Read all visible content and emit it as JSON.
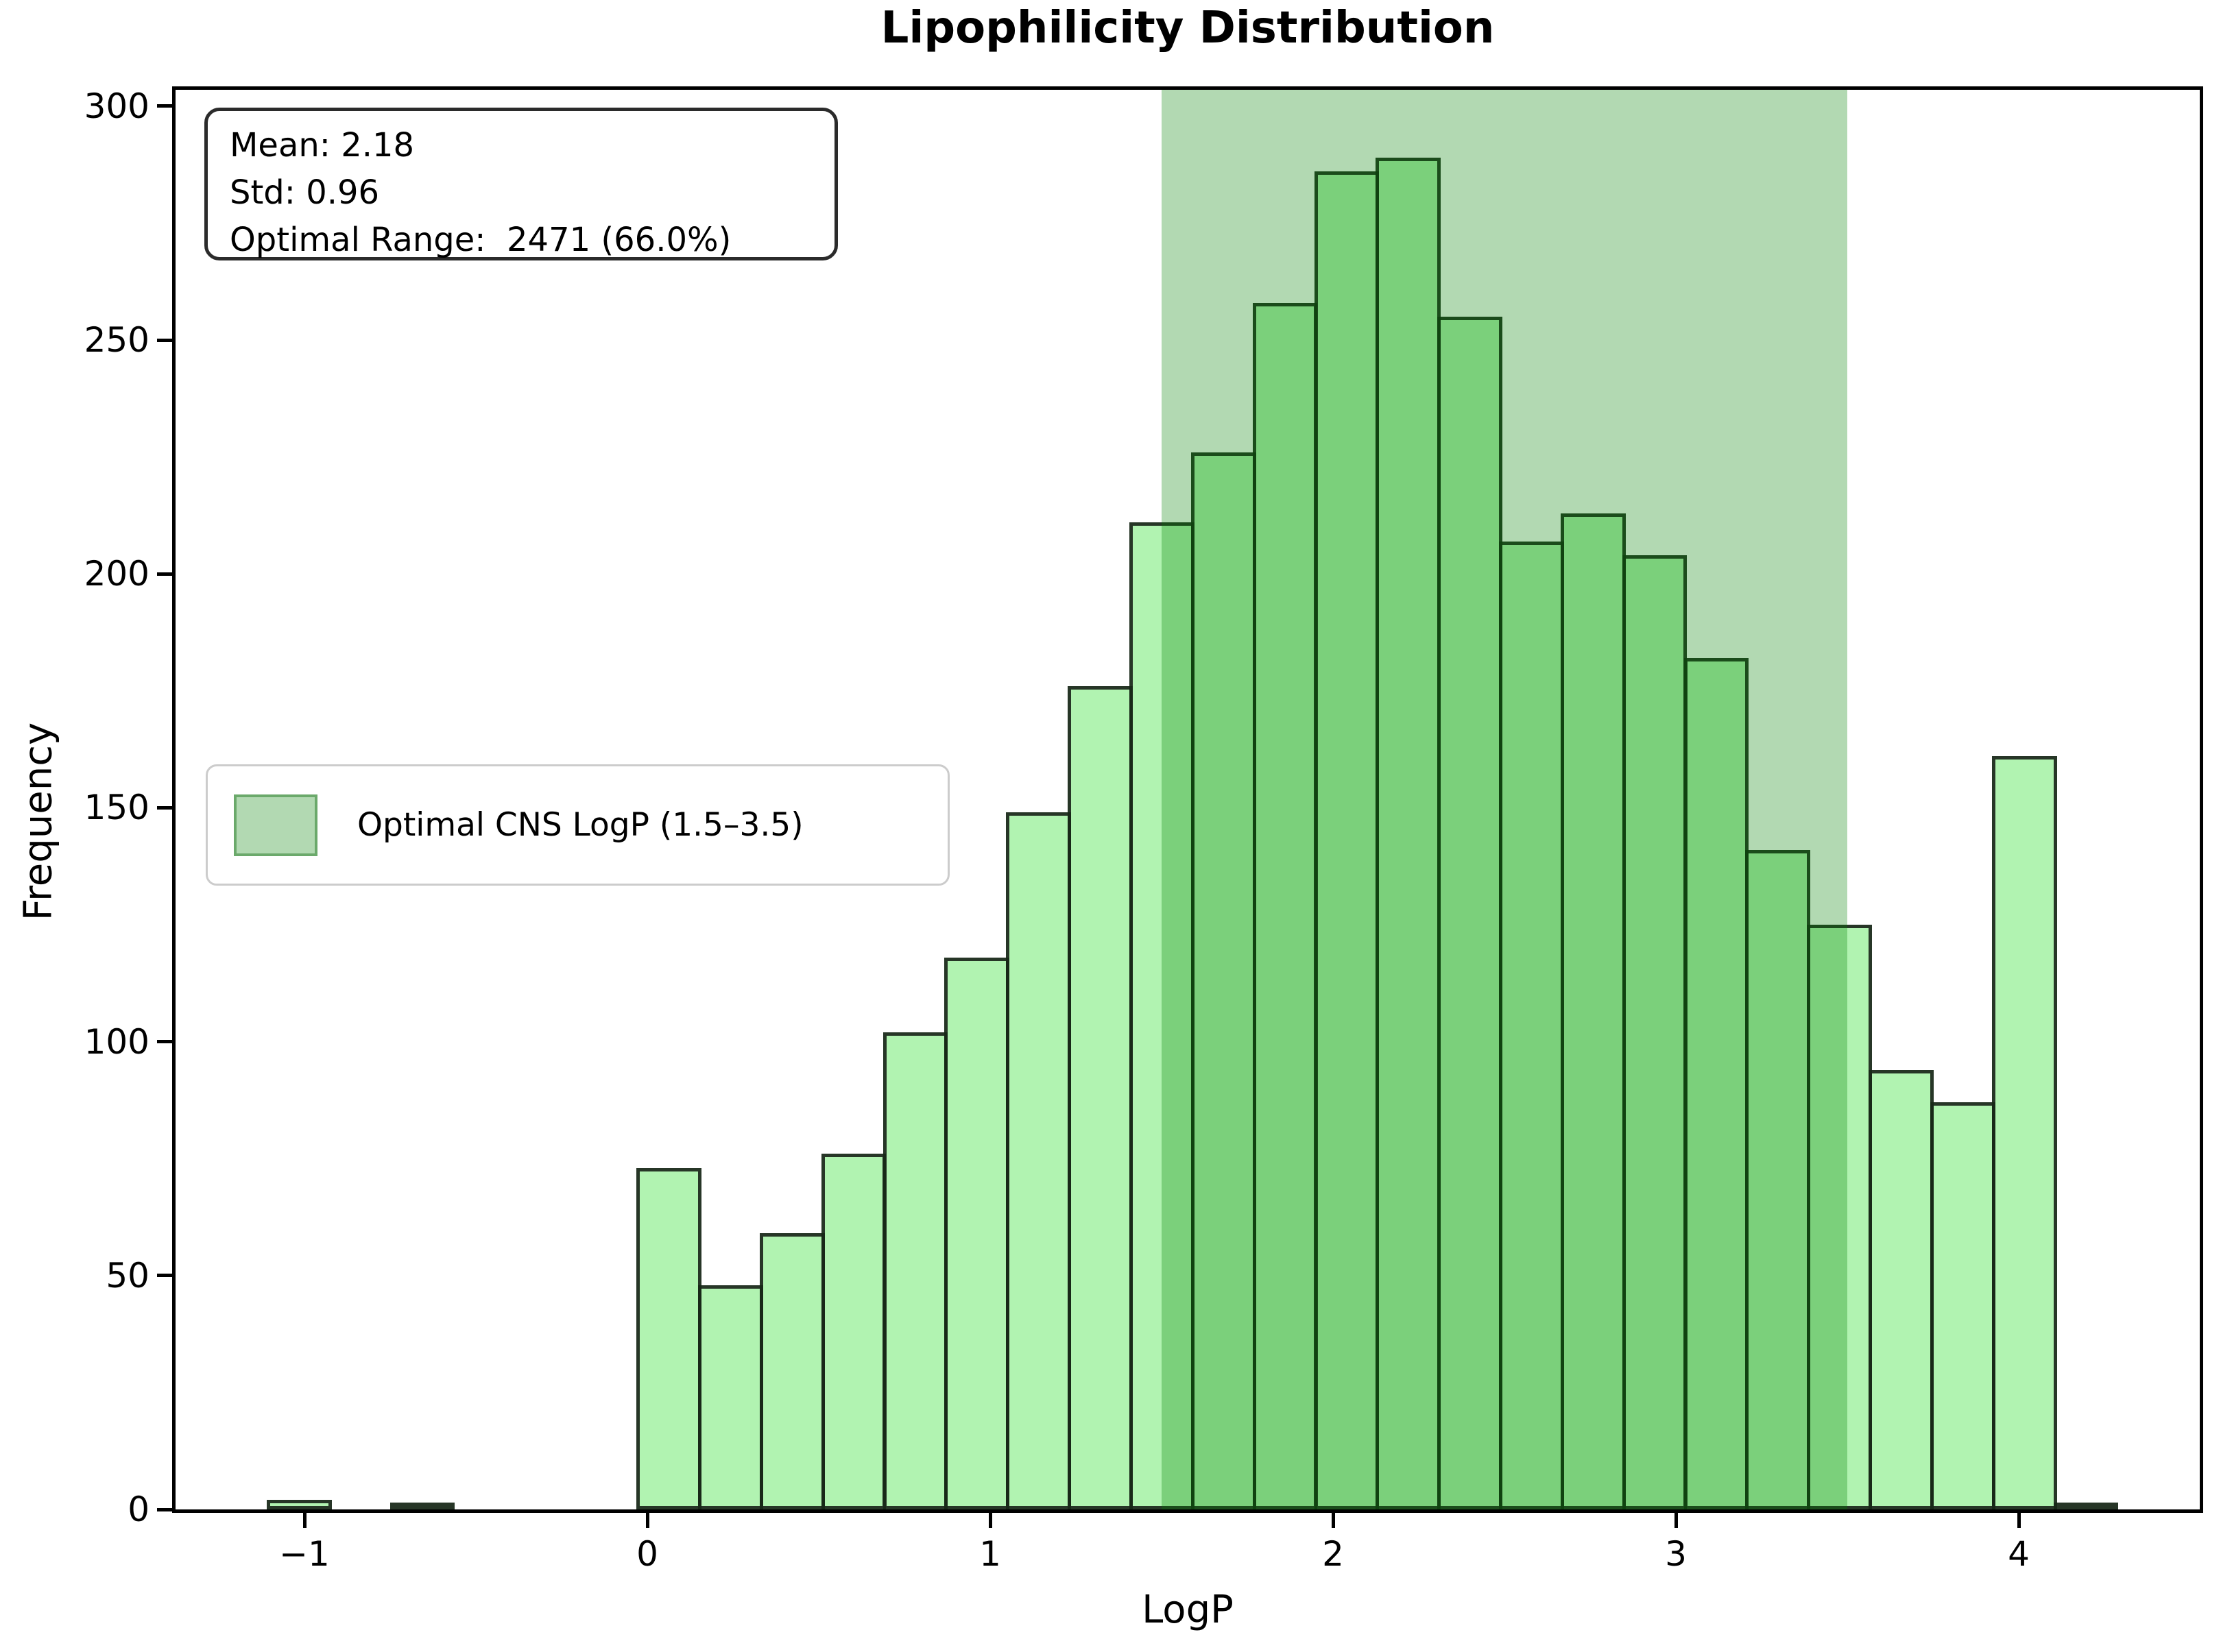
{
  "title": "Lipophilicity Distribution",
  "stats_box": {
    "mean_line": "Mean: 2.18",
    "std_line": "Std: 0.96",
    "optimal_line": "Optimal Range:  2471 (66.0%)"
  },
  "legend": {
    "label": "Optimal CNS LogP (1.5–3.5)"
  },
  "chart_data": {
    "type": "bar",
    "subtype": "histogram",
    "title": "Lipophilicity Distribution",
    "xlabel": "LogP",
    "ylabel": "Frequency",
    "bins": {
      "start": -1.11,
      "width": 0.1797,
      "count": 30
    },
    "counts": [
      2,
      0,
      1,
      0,
      0,
      0,
      73,
      48,
      59,
      76,
      102,
      118,
      149,
      176,
      211,
      226,
      258,
      286,
      289,
      255,
      207,
      213,
      204,
      182,
      141,
      125,
      94,
      87,
      161,
      1
    ],
    "total_count": 3744,
    "x_ticks": [
      -1,
      0,
      1,
      2,
      3,
      4
    ],
    "x_tick_labels": [
      "−1",
      "0",
      "1",
      "2",
      "3",
      "4"
    ],
    "y_ticks": [
      0,
      50,
      100,
      150,
      200,
      250,
      300
    ],
    "y_tick_labels": [
      "0",
      "50",
      "100",
      "150",
      "200",
      "250",
      "300"
    ],
    "xlim": [
      -1.376,
      4.528
    ],
    "ylim": [
      0,
      303.5
    ],
    "band": {
      "from": 1.5,
      "to": 3.5,
      "label": "Optimal CNS LogP (1.5–3.5)"
    },
    "legend_position": "center-left",
    "grid": false,
    "colors": {
      "bar_fill": "rgba(144,238,144,0.7)",
      "bar_edge": "rgba(0,0,0,0.78)",
      "band_fill": "rgba(0,128,0,0.3)",
      "axes": "#000000",
      "background": "#ffffff"
    }
  }
}
